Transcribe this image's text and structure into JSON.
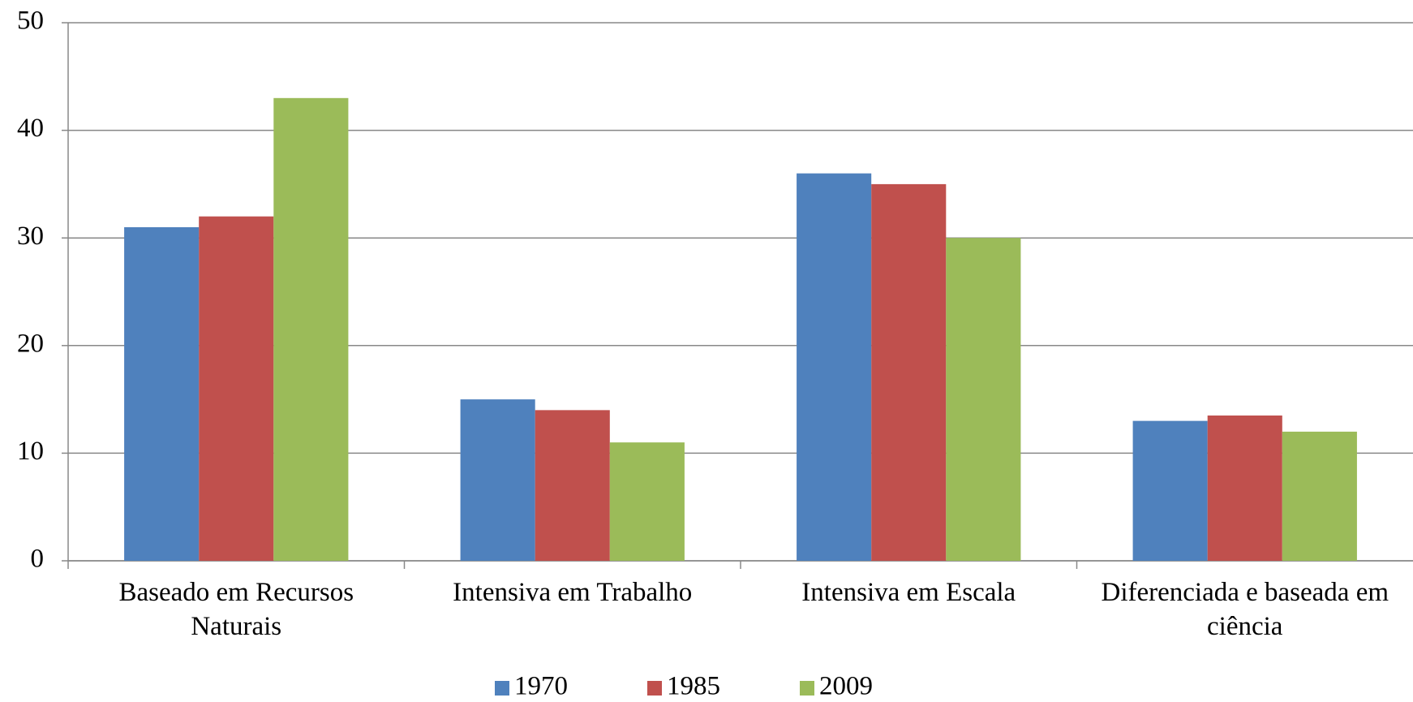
{
  "chart_data": {
    "type": "bar",
    "categories": [
      "Baseado em Recursos Naturais",
      "Intensiva em Trabalho",
      "Intensiva em Escala",
      "Diferenciada e baseada em ciência"
    ],
    "series": [
      {
        "name": "1970",
        "color": "#4f81bd",
        "values": [
          31,
          15,
          36,
          13
        ]
      },
      {
        "name": "1985",
        "color": "#c0504d",
        "values": [
          32,
          14,
          35,
          13.5
        ]
      },
      {
        "name": "2009",
        "color": "#9bbb59",
        "values": [
          43,
          11,
          30,
          12
        ]
      }
    ],
    "ylim": [
      0,
      50
    ],
    "yticks": [
      0,
      10,
      20,
      30,
      40,
      50
    ],
    "grid": true,
    "legend": "bottom"
  }
}
